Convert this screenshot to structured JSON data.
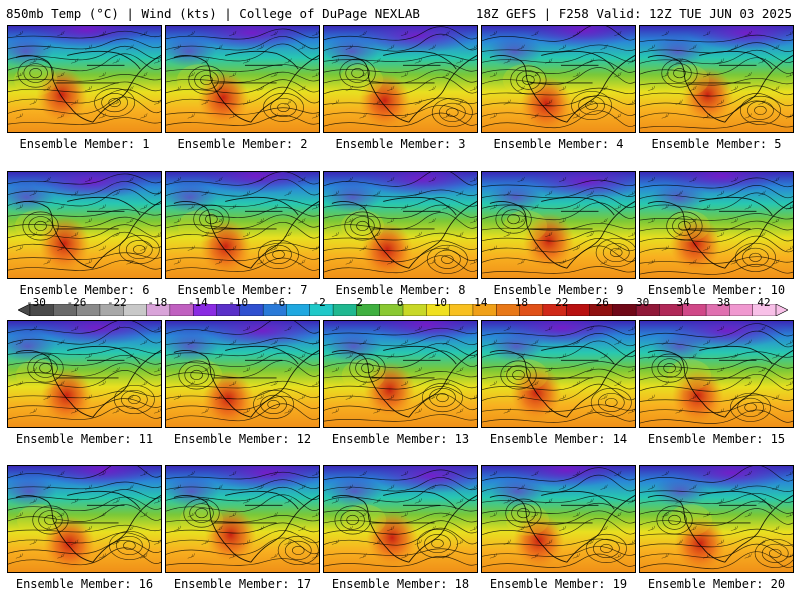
{
  "header": {
    "left": "850mb Temp (°C) | Wind (kts) | College of DuPage NEXLAB",
    "right": "18Z GEFS | F258 Valid: 12Z TUE JUN 03 2025"
  },
  "panels": [
    {
      "label": "Ensemble Member: 1"
    },
    {
      "label": "Ensemble Member: 2"
    },
    {
      "label": "Ensemble Member: 3"
    },
    {
      "label": "Ensemble Member: 4"
    },
    {
      "label": "Ensemble Member: 5"
    },
    {
      "label": "Ensemble Member: 6"
    },
    {
      "label": "Ensemble Member: 7"
    },
    {
      "label": "Ensemble Member: 8"
    },
    {
      "label": "Ensemble Member: 9"
    },
    {
      "label": "Ensemble Member: 10"
    },
    {
      "label": "Ensemble Member: 11"
    },
    {
      "label": "Ensemble Member: 12"
    },
    {
      "label": "Ensemble Member: 13"
    },
    {
      "label": "Ensemble Member: 14"
    },
    {
      "label": "Ensemble Member: 15"
    },
    {
      "label": "Ensemble Member: 16"
    },
    {
      "label": "Ensemble Member: 17"
    },
    {
      "label": "Ensemble Member: 18"
    },
    {
      "label": "Ensemble Member: 19"
    },
    {
      "label": "Ensemble Member: 20"
    }
  ],
  "colorbar": {
    "labels": [
      "-30",
      "-26",
      "-22",
      "-18",
      "-14",
      "-10",
      "-6",
      "-2",
      "2",
      "6",
      "10",
      "14",
      "18",
      "22",
      "26",
      "30",
      "34",
      "38",
      "42"
    ],
    "colors": [
      "#4a4a4a",
      "#6a6a6a",
      "#8a8a8a",
      "#a8a8a8",
      "#c8c8c8",
      "#d9a3d9",
      "#c060c0",
      "#8a2be2",
      "#5a30c8",
      "#3050d0",
      "#2a7ad8",
      "#20a8e0",
      "#20c8c8",
      "#20b890",
      "#40b040",
      "#8ac832",
      "#c8d828",
      "#f0e020",
      "#f8c020",
      "#f0a018",
      "#e87818",
      "#e05018",
      "#d02818",
      "#b81010",
      "#901010",
      "#700818",
      "#901838",
      "#b02858",
      "#d04888",
      "#e070b0",
      "#f098d0",
      "#f8c0e8"
    ]
  }
}
